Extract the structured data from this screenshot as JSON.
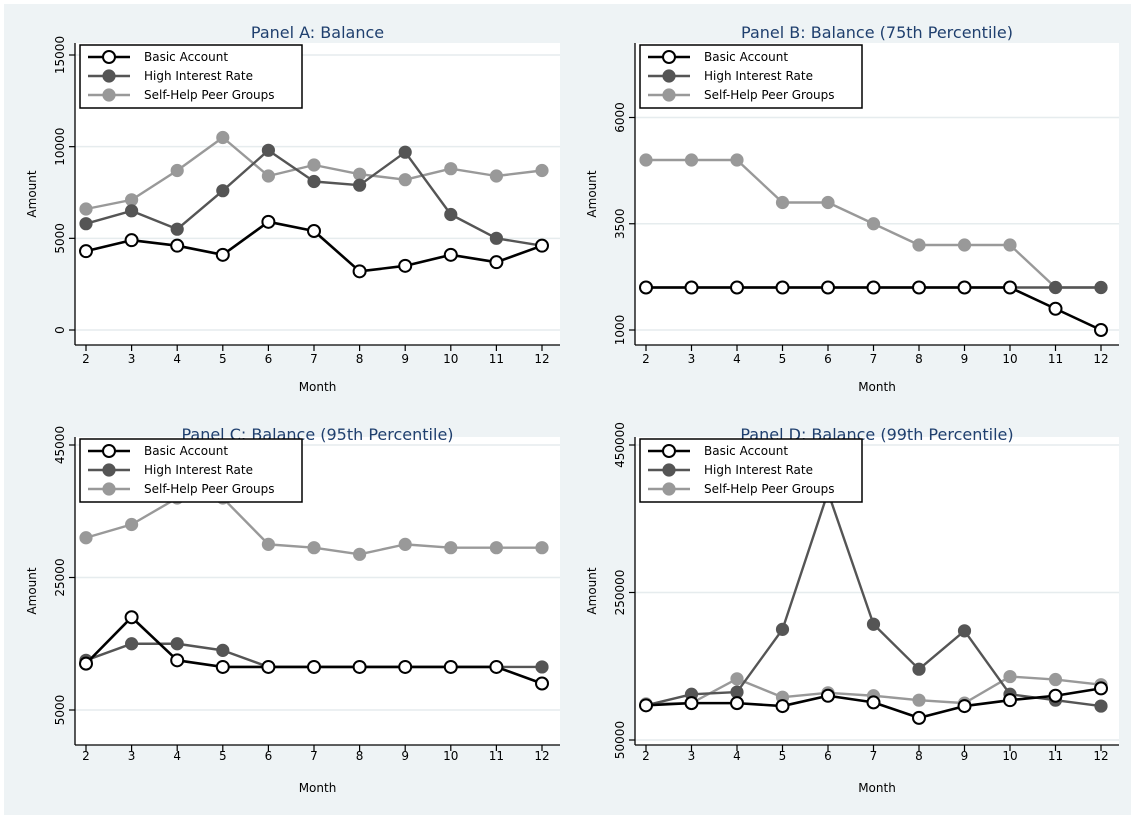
{
  "chart_data": [
    {
      "type": "line",
      "title": "Panel A: Balance",
      "xlabel": "Month",
      "ylabel": "Amount",
      "x": [
        2,
        3,
        4,
        5,
        6,
        7,
        8,
        9,
        10,
        11,
        12
      ],
      "xlim": [
        2,
        12
      ],
      "ylim": [
        0,
        15000
      ],
      "yticks": [
        0,
        5000,
        10000,
        15000
      ],
      "grid": true,
      "legend": "top-left",
      "series": [
        {
          "name": "Basic Account",
          "color": "#000000",
          "marker_fill": "#ffffff",
          "values": [
            4300,
            4900,
            4600,
            4100,
            5900,
            5400,
            3200,
            3500,
            4100,
            3700,
            4600
          ]
        },
        {
          "name": "High Interest Rate",
          "color": "#555555",
          "marker_fill": "#555555",
          "values": [
            5800,
            6500,
            5500,
            7600,
            9800,
            8100,
            7900,
            9700,
            6300,
            5000,
            4600
          ]
        },
        {
          "name": "Self-Help Peer Groups",
          "color": "#999999",
          "marker_fill": "#999999",
          "values": [
            6600,
            7100,
            8700,
            10500,
            8400,
            9000,
            8500,
            8200,
            8800,
            8400,
            8700
          ]
        }
      ]
    },
    {
      "type": "line",
      "title": "Panel B: Balance (75th Percentile)",
      "xlabel": "Month",
      "ylabel": "Amount",
      "x": [
        2,
        3,
        4,
        5,
        6,
        7,
        8,
        9,
        10,
        11,
        12
      ],
      "xlim": [
        2,
        12
      ],
      "ylim": [
        1000,
        7000
      ],
      "yticks": [
        1000,
        3500,
        6000
      ],
      "grid": true,
      "legend": "top-left",
      "series": [
        {
          "name": "Basic Account",
          "color": "#000000",
          "marker_fill": "#ffffff",
          "values": [
            2000,
            2000,
            2000,
            2000,
            2000,
            2000,
            2000,
            2000,
            2000,
            1500,
            1000
          ]
        },
        {
          "name": "High Interest Rate",
          "color": "#555555",
          "marker_fill": "#555555",
          "values": [
            2000,
            2000,
            2000,
            2000,
            2000,
            2000,
            2000,
            2000,
            2000,
            2000,
            2000
          ]
        },
        {
          "name": "Self-Help Peer Groups",
          "color": "#999999",
          "marker_fill": "#999999",
          "values": [
            5000,
            5000,
            5000,
            4000,
            4000,
            3500,
            3000,
            3000,
            3000,
            2000,
            2000
          ]
        }
      ]
    },
    {
      "type": "line",
      "title": "Panel C: Balance (95th Percentile)",
      "xlabel": "Month",
      "ylabel": "Amount",
      "x": [
        2,
        3,
        4,
        5,
        6,
        7,
        8,
        9,
        10,
        11,
        12
      ],
      "xlim": [
        2,
        12
      ],
      "ylim": [
        5000,
        45000
      ],
      "yticks": [
        5000,
        25000,
        45000
      ],
      "grid": true,
      "legend": "top-left",
      "series": [
        {
          "name": "Basic Account",
          "color": "#000000",
          "marker_fill": "#ffffff",
          "values": [
            12000,
            19000,
            12500,
            11500,
            11500,
            11500,
            11500,
            11500,
            11500,
            11500,
            9000
          ]
        },
        {
          "name": "High Interest Rate",
          "color": "#555555",
          "marker_fill": "#555555",
          "values": [
            12500,
            15000,
            15000,
            14000,
            11500,
            11500,
            11500,
            11500,
            11500,
            11500,
            11500
          ]
        },
        {
          "name": "Self-Help Peer Groups",
          "color": "#999999",
          "marker_fill": "#999999",
          "values": [
            31000,
            33000,
            37000,
            37000,
            30000,
            29500,
            28500,
            30000,
            29500,
            29500,
            29500
          ]
        }
      ]
    },
    {
      "type": "line",
      "title": "Panel D: Balance (99th Percentile)",
      "xlabel": "Month",
      "ylabel": "Amount",
      "x": [
        2,
        3,
        4,
        5,
        6,
        7,
        8,
        9,
        10,
        11,
        12
      ],
      "xlim": [
        2,
        12
      ],
      "ylim": [
        50000,
        450000
      ],
      "yticks": [
        50000,
        250000,
        450000
      ],
      "grid": true,
      "legend": "top-left",
      "series": [
        {
          "name": "Basic Account",
          "color": "#000000",
          "marker_fill": "#ffffff",
          "values": [
            97000,
            100000,
            100000,
            96000,
            110000,
            101000,
            80000,
            96000,
            104000,
            110000,
            120000
          ]
        },
        {
          "name": "High Interest Rate",
          "color": "#555555",
          "marker_fill": "#555555",
          "values": [
            97000,
            112000,
            115000,
            200000,
            386000,
            207000,
            146000,
            198000,
            112000,
            104000,
            96000
          ]
        },
        {
          "name": "Self-Help Peer Groups",
          "color": "#999999",
          "marker_fill": "#999999",
          "values": [
            99000,
            100000,
            133000,
            108000,
            114000,
            110000,
            104000,
            100000,
            136000,
            132000,
            125000
          ]
        }
      ]
    }
  ]
}
